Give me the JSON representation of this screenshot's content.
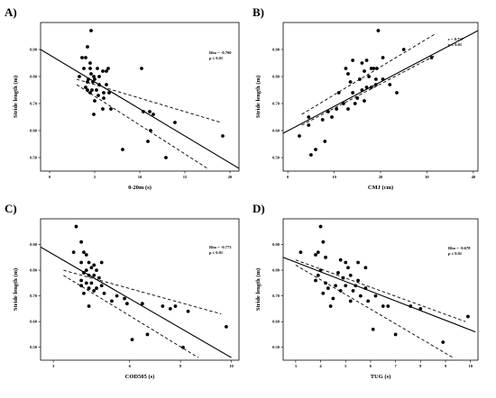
{
  "chart_data": [
    {
      "type": "scatter",
      "panel": "A)",
      "xlabel": "0-20m (s)",
      "ylabel": "Stride length (m)",
      "annotation": [
        "Rho = -0.700",
        "p ≤ 0.01"
      ],
      "xlim": [
        -1,
        21
      ],
      "ylim": [
        0.45,
        1.0
      ],
      "xticks": [
        0,
        5,
        10,
        15,
        20
      ],
      "yticks": [
        0.5,
        0.6,
        0.7,
        0.8,
        0.9
      ],
      "ytick_labels": [
        "0.50",
        "0.60",
        "0.70",
        "0.80",
        "0.90"
      ],
      "fit_line": [
        [
          -1,
          0.9
        ],
        [
          21,
          0.46
        ]
      ],
      "ci_upper": [
        [
          3,
          0.79
        ],
        [
          19,
          0.63
        ]
      ],
      "ci_lower": [
        [
          3,
          0.77
        ],
        [
          17.5,
          0.46
        ]
      ],
      "points": [
        [
          4.6,
          0.97
        ],
        [
          4.2,
          0.91
        ],
        [
          3.6,
          0.87
        ],
        [
          4,
          0.87
        ],
        [
          4.5,
          0.85
        ],
        [
          4.5,
          0.83
        ],
        [
          3.8,
          0.83
        ],
        [
          5.3,
          0.83
        ],
        [
          6.5,
          0.83
        ],
        [
          5.9,
          0.82
        ],
        [
          6.3,
          0.82
        ],
        [
          4.6,
          0.81
        ],
        [
          4.9,
          0.8
        ],
        [
          4.3,
          0.79
        ],
        [
          5,
          0.79
        ],
        [
          5.5,
          0.8
        ],
        [
          4.2,
          0.78
        ],
        [
          4.8,
          0.78
        ],
        [
          5.5,
          0.77
        ],
        [
          6.3,
          0.77
        ],
        [
          4,
          0.76
        ],
        [
          4.7,
          0.75
        ],
        [
          5.2,
          0.75
        ],
        [
          6,
          0.74
        ],
        [
          6.6,
          0.74
        ],
        [
          4.5,
          0.74
        ],
        [
          5.4,
          0.73
        ],
        [
          6,
          0.72
        ],
        [
          5,
          0.71
        ],
        [
          4.2,
          0.75
        ],
        [
          3.3,
          0.8
        ],
        [
          6.8,
          0.68
        ],
        [
          5.9,
          0.68
        ],
        [
          4.9,
          0.66
        ],
        [
          10.2,
          0.83
        ],
        [
          10.4,
          0.67
        ],
        [
          11.1,
          0.67
        ],
        [
          11.5,
          0.66
        ],
        [
          13.9,
          0.63
        ],
        [
          11.2,
          0.6
        ],
        [
          10.9,
          0.56
        ],
        [
          8.1,
          0.53
        ],
        [
          12.9,
          0.5
        ],
        [
          19.2,
          0.58
        ]
      ]
    },
    {
      "type": "scatter",
      "panel": "B)",
      "xlabel": "CMJ (cm)",
      "ylabel": "Stride length (m)",
      "annotation": [
        "r = 0.737",
        "p ≤ 0.01"
      ],
      "xlim": [
        -1,
        41
      ],
      "ylim": [
        0.45,
        1.0
      ],
      "xticks": [
        0,
        10,
        20,
        30,
        40
      ],
      "yticks": [
        0.5,
        0.6,
        0.7,
        0.8,
        0.9
      ],
      "ytick_labels": [
        "0.50",
        "0.60",
        "0.70",
        "0.80",
        "0.90"
      ],
      "fit_line": [
        [
          -1,
          0.59
        ],
        [
          41,
          0.97
        ]
      ],
      "ci_upper": [
        [
          3,
          0.66
        ],
        [
          32,
          0.96
        ]
      ],
      "ci_lower": [
        [
          3,
          0.62
        ],
        [
          32,
          0.88
        ]
      ],
      "points": [
        [
          5,
          0.51
        ],
        [
          6,
          0.53
        ],
        [
          2.5,
          0.58
        ],
        [
          4.5,
          0.62
        ],
        [
          8,
          0.56
        ],
        [
          4.5,
          0.65
        ],
        [
          7.5,
          0.64
        ],
        [
          9.5,
          0.65
        ],
        [
          8.7,
          0.67
        ],
        [
          10.5,
          0.68
        ],
        [
          13,
          0.68
        ],
        [
          12,
          0.7
        ],
        [
          14.5,
          0.7
        ],
        [
          15,
          0.72
        ],
        [
          16.5,
          0.71
        ],
        [
          11,
          0.74
        ],
        [
          14,
          0.74
        ],
        [
          16,
          0.75
        ],
        [
          17,
          0.76
        ],
        [
          18,
          0.76
        ],
        [
          19,
          0.77
        ],
        [
          13.5,
          0.78
        ],
        [
          15.5,
          0.79
        ],
        [
          19,
          0.79
        ],
        [
          17.5,
          0.8
        ],
        [
          20.5,
          0.79
        ],
        [
          22,
          0.77
        ],
        [
          13,
          0.81
        ],
        [
          16.5,
          0.82
        ],
        [
          12.5,
          0.83
        ],
        [
          18,
          0.83
        ],
        [
          18.5,
          0.83
        ],
        [
          19.2,
          0.83
        ],
        [
          16,
          0.85
        ],
        [
          17,
          0.86
        ],
        [
          14,
          0.86
        ],
        [
          20.5,
          0.87
        ],
        [
          19.5,
          0.97
        ],
        [
          25,
          0.9
        ],
        [
          23.5,
          0.74
        ],
        [
          31,
          0.87
        ]
      ]
    },
    {
      "type": "scatter",
      "panel": "C)",
      "xlabel": "COD505 (s)",
      "ylabel": "Stride length (m)",
      "annotation": [
        "Rho = -0.773",
        "p ≤ 0.01"
      ],
      "xlim": [
        2.5,
        10.3
      ],
      "ylim": [
        0.45,
        1.0
      ],
      "xticks": [
        3,
        6,
        8,
        10
      ],
      "yticks": [
        0.5,
        0.6,
        0.7,
        0.8,
        0.9
      ],
      "ytick_labels": [
        "0.50",
        "0.60",
        "0.70",
        "0.80",
        "0.90"
      ],
      "fit_line": [
        [
          2.5,
          0.89
        ],
        [
          10,
          0.46
        ]
      ],
      "ci_upper": [
        [
          3.4,
          0.8
        ],
        [
          9.6,
          0.63
        ]
      ],
      "ci_lower": [
        [
          3.4,
          0.78
        ],
        [
          8.7,
          0.46
        ]
      ],
      "points": [
        [
          3.9,
          0.97
        ],
        [
          4.1,
          0.91
        ],
        [
          3.8,
          0.87
        ],
        [
          4.2,
          0.87
        ],
        [
          4.3,
          0.86
        ],
        [
          4.4,
          0.83
        ],
        [
          4.1,
          0.83
        ],
        [
          4.6,
          0.82
        ],
        [
          4.9,
          0.83
        ],
        [
          4.5,
          0.81
        ],
        [
          4.3,
          0.8
        ],
        [
          4.7,
          0.8
        ],
        [
          4.2,
          0.79
        ],
        [
          4.4,
          0.78
        ],
        [
          4.6,
          0.78
        ],
        [
          4.8,
          0.77
        ],
        [
          4.1,
          0.76
        ],
        [
          4.3,
          0.75
        ],
        [
          4.5,
          0.75
        ],
        [
          4.9,
          0.74
        ],
        [
          4.1,
          0.74
        ],
        [
          4.4,
          0.73
        ],
        [
          4.7,
          0.73
        ],
        [
          4.6,
          0.72
        ],
        [
          4.2,
          0.71
        ],
        [
          5,
          0.71
        ],
        [
          5.5,
          0.7
        ],
        [
          5.8,
          0.69
        ],
        [
          5.3,
          0.68
        ],
        [
          4.4,
          0.66
        ],
        [
          5.9,
          0.67
        ],
        [
          6.5,
          0.67
        ],
        [
          7.3,
          0.66
        ],
        [
          7.8,
          0.66
        ],
        [
          7.6,
          0.65
        ],
        [
          8.3,
          0.64
        ],
        [
          9.8,
          0.58
        ],
        [
          6.1,
          0.53
        ],
        [
          6.7,
          0.55
        ],
        [
          8.1,
          0.5
        ]
      ]
    },
    {
      "type": "scatter",
      "panel": "D)",
      "xlabel": "TUG (s)",
      "ylabel": "Stride length (m)",
      "annotation": [
        "Rho = -0.678",
        "p ≤ 0.01"
      ],
      "xlim": [
        2.5,
        10.3
      ],
      "ylim": [
        0.45,
        1.0
      ],
      "xticks": [
        3,
        4,
        5,
        6,
        7,
        8,
        9,
        10
      ],
      "yticks": [
        0.5,
        0.6,
        0.7,
        0.8,
        0.9
      ],
      "ytick_labels": [
        "0.50",
        "0.60",
        "0.70",
        "0.80",
        "0.90"
      ],
      "fit_line": [
        [
          2.5,
          0.85
        ],
        [
          10.2,
          0.56
        ]
      ],
      "ci_upper": [
        [
          3,
          0.84
        ],
        [
          9.8,
          0.6
        ]
      ],
      "ci_lower": [
        [
          3,
          0.82
        ],
        [
          9.3,
          0.46
        ]
      ],
      "points": [
        [
          3.2,
          0.87
        ],
        [
          4,
          0.97
        ],
        [
          4.1,
          0.91
        ],
        [
          3.9,
          0.87
        ],
        [
          3.8,
          0.86
        ],
        [
          4.2,
          0.85
        ],
        [
          4.8,
          0.84
        ],
        [
          5.5,
          0.83
        ],
        [
          5.8,
          0.81
        ],
        [
          4,
          0.8
        ],
        [
          5,
          0.83
        ],
        [
          5.1,
          0.81
        ],
        [
          4.7,
          0.79
        ],
        [
          5.2,
          0.78
        ],
        [
          4.9,
          0.77
        ],
        [
          5.5,
          0.76
        ],
        [
          3.8,
          0.76
        ],
        [
          4.2,
          0.75
        ],
        [
          4.6,
          0.74
        ],
        [
          5,
          0.74
        ],
        [
          5.4,
          0.74
        ],
        [
          5.8,
          0.73
        ],
        [
          4.3,
          0.73
        ],
        [
          4.8,
          0.72
        ],
        [
          5.3,
          0.72
        ],
        [
          4.1,
          0.71
        ],
        [
          5.6,
          0.7
        ],
        [
          6.2,
          0.7
        ],
        [
          4.5,
          0.69
        ],
        [
          5.9,
          0.68
        ],
        [
          5.2,
          0.68
        ],
        [
          4.4,
          0.66
        ],
        [
          6.7,
          0.66
        ],
        [
          7.6,
          0.66
        ],
        [
          8,
          0.65
        ],
        [
          9.9,
          0.62
        ],
        [
          6.1,
          0.57
        ],
        [
          7,
          0.55
        ],
        [
          8.9,
          0.52
        ],
        [
          6.5,
          0.66
        ],
        [
          3.9,
          0.78
        ]
      ]
    }
  ]
}
